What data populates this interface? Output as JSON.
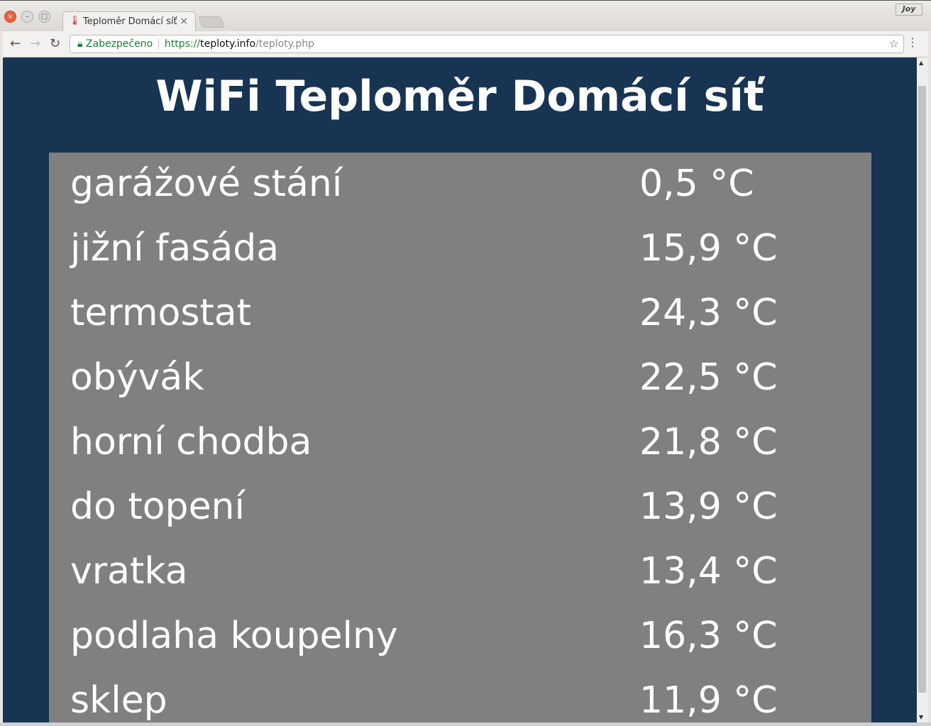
{
  "browser": {
    "tab_title": "Teploměr Domácí síť",
    "profile": "Joy",
    "security_label": "Zabezpečeno",
    "url_scheme": "https://",
    "url_host": "teploty.info",
    "url_path": "/teploty.php"
  },
  "page": {
    "title": "WiFi Teploměr Domácí síť",
    "sensors": [
      {
        "name": "garážové stání",
        "value": "0,5 °C"
      },
      {
        "name": "jižní fasáda",
        "value": "15,9 °C"
      },
      {
        "name": "termostat",
        "value": "24,3 °C"
      },
      {
        "name": "obývák",
        "value": "22,5 °C"
      },
      {
        "name": "horní chodba",
        "value": "21,8 °C"
      },
      {
        "name": "do topení",
        "value": "13,9 °C"
      },
      {
        "name": "vratka",
        "value": "13,4 °C"
      },
      {
        "name": "podlaha koupelny",
        "value": "16,3 °C"
      },
      {
        "name": "sklep",
        "value": "11,9 °C"
      }
    ]
  },
  "colors": {
    "page_bg": "#183453",
    "panel_bg": "#808080",
    "secure": "#188038"
  }
}
